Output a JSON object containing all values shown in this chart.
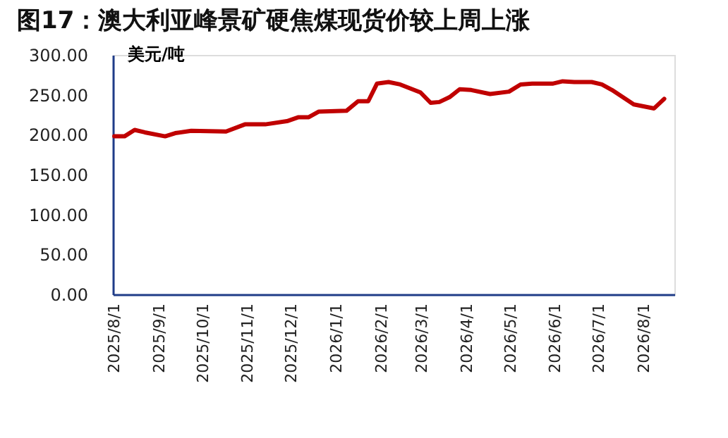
{
  "chart_data": {
    "type": "line",
    "title": "图17：澳大利亚峰景矿硬焦煤现货价较上周上涨",
    "ylabel": "美元/吨",
    "x": [
      "2025-08-01",
      "2025-08-08",
      "2025-08-15",
      "2025-08-22",
      "2025-09-05",
      "2025-09-12",
      "2025-09-23",
      "2025-10-17",
      "2025-10-30",
      "2025-11-13",
      "2025-11-28",
      "2025-12-06",
      "2025-12-13",
      "2025-12-20",
      "2026-01-08",
      "2026-01-16",
      "2026-01-23",
      "2026-01-29",
      "2026-02-06",
      "2026-02-14",
      "2026-02-28",
      "2026-03-07",
      "2026-03-13",
      "2026-03-20",
      "2026-03-27",
      "2026-04-04",
      "2026-04-17",
      "2026-04-30",
      "2026-05-08",
      "2026-05-16",
      "2026-05-30",
      "2026-06-06",
      "2026-06-14",
      "2026-06-26",
      "2026-07-03",
      "2026-07-10",
      "2026-07-25",
      "2026-08-08",
      "2026-08-15"
    ],
    "series": [
      {
        "color": "#c00000",
        "values": [
          198,
          198,
          206,
          203,
          198,
          202,
          205,
          204,
          213,
          213,
          217,
          222,
          222,
          229,
          230,
          242,
          242,
          264,
          266,
          263,
          253,
          240,
          241,
          247,
          257,
          256,
          251,
          254,
          263,
          264,
          264,
          267,
          266,
          266,
          263,
          256,
          238,
          233,
          245
        ]
      }
    ],
    "xlim": [
      "2025-07-31",
      "2026-08-22"
    ],
    "xticks": [
      {
        "value": "2025-08-01",
        "label": "2025/8/1"
      },
      {
        "value": "2025-09-01",
        "label": "2025/9/1"
      },
      {
        "value": "2025-10-01",
        "label": "2025/10/1"
      },
      {
        "value": "2025-11-01",
        "label": "2025/11/1"
      },
      {
        "value": "2025-12-01",
        "label": "2025/12/1"
      },
      {
        "value": "2026-01-01",
        "label": "2026/1/1"
      },
      {
        "value": "2026-02-01",
        "label": "2026/2/1"
      },
      {
        "value": "2026-03-01",
        "label": "2026/3/1"
      },
      {
        "value": "2026-04-01",
        "label": "2026/4/1"
      },
      {
        "value": "2026-05-01",
        "label": "2026/5/1"
      },
      {
        "value": "2026-06-01",
        "label": "2026/6/1"
      },
      {
        "value": "2026-07-01",
        "label": "2026/7/1"
      },
      {
        "value": "2026-08-01",
        "label": "2026/8/1"
      }
    ],
    "ylim": [
      0,
      300
    ],
    "yticks": [
      {
        "value": 0,
        "label": "0.00"
      },
      {
        "value": 50,
        "label": "50.00"
      },
      {
        "value": 100,
        "label": "100.00"
      },
      {
        "value": 150,
        "label": "150.00"
      },
      {
        "value": 200,
        "label": "200.00"
      },
      {
        "value": 250,
        "label": "250.00"
      },
      {
        "value": 300,
        "label": "300.00"
      }
    ],
    "grid": false,
    "line_style": "solid",
    "marker": "none"
  }
}
